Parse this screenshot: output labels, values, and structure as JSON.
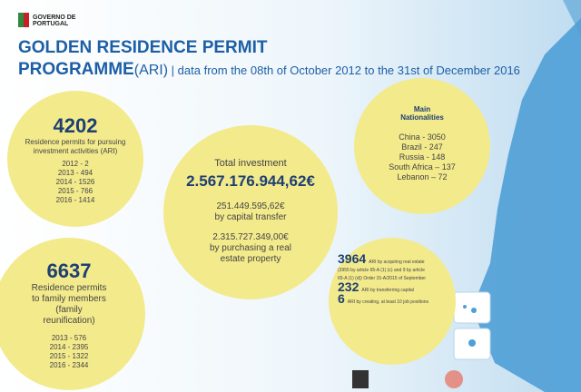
{
  "logo": "GOVERNO DE PORTUGAL",
  "header": {
    "title_line1": "GOLDEN RESIDENCE PERMIT",
    "title_line2": "PROGRAMME",
    "abbreviation": "(ARI)",
    "date_range": " | data from the 08th of October 2012 to the 31st of December 2016"
  },
  "investors": {
    "total": "4202",
    "label": "Residence permits for pursuing investment activities (ARI)",
    "by_year": [
      "2012 - 2",
      "2013 - 494",
      "2014 - 1526",
      "2015 - 766",
      "2016 - 1414"
    ]
  },
  "family": {
    "total": "6637",
    "label": "Residence permits to family members (family reunification)",
    "by_year": [
      "2013 - 576",
      "2014 - 2395",
      "2015 - 1322",
      "2016 - 2344"
    ]
  },
  "investment": {
    "label": "Total investment",
    "total": "2.567.176.944,62€",
    "capital_transfer": {
      "amount": "251.449.595,62€",
      "label": "by capital transfer"
    },
    "real_estate": {
      "amount": "2.315.727.349,00€",
      "label": "by purchasing a real estate property"
    }
  },
  "nationalities": {
    "title": "Main Nationalities",
    "items": [
      "China - 3050",
      "Brazil - 247",
      "Russia - 148",
      "South Africa – 137",
      "Lebanon – 72"
    ]
  },
  "types": [
    {
      "number": "3964",
      "label": "ARI by acquiring real estate (3955 by article 65-A (1) (c) and 9 by article 65-A (1) (d)) Order 15-A/2015 of September"
    },
    {
      "number": "232",
      "label": "ARI by transferring capital"
    },
    {
      "number": "6",
      "label": "ARI by creating, at least 10 job positions"
    }
  ]
}
